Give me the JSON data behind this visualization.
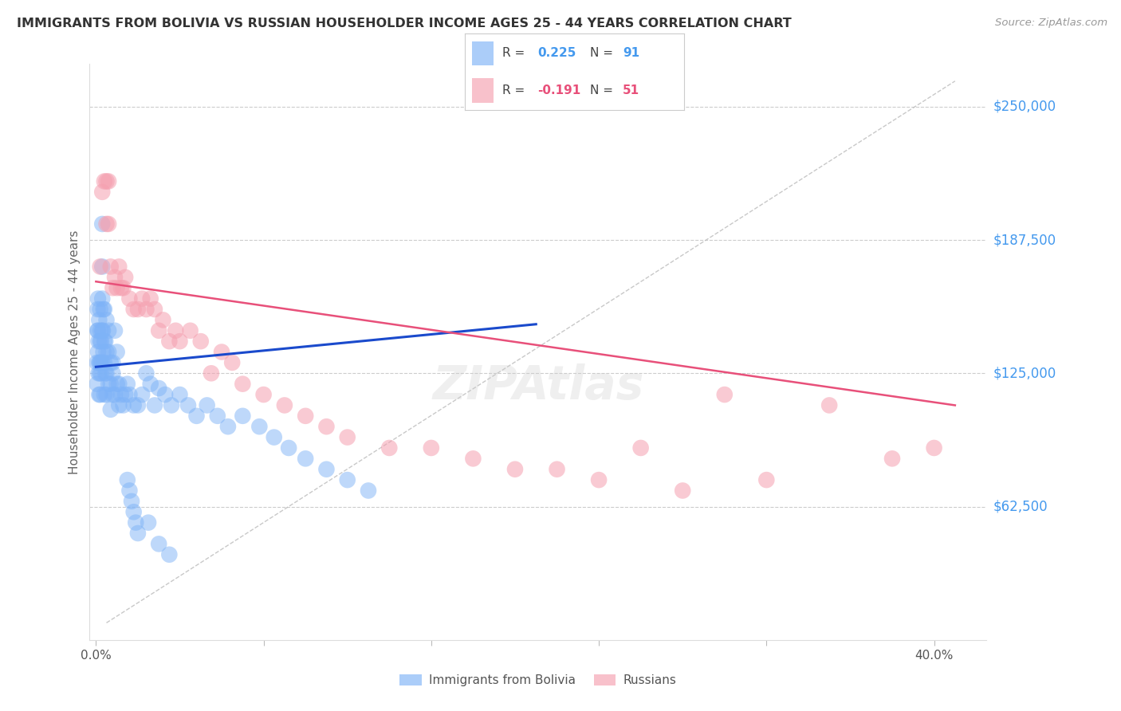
{
  "title": "IMMIGRANTS FROM BOLIVIA VS RUSSIAN HOUSEHOLDER INCOME AGES 25 - 44 YEARS CORRELATION CHART",
  "source": "Source: ZipAtlas.com",
  "ylabel": "Householder Income Ages 25 - 44 years",
  "ytick_labels": [
    "$62,500",
    "$125,000",
    "$187,500",
    "$250,000"
  ],
  "ytick_values": [
    62500,
    125000,
    187500,
    250000
  ],
  "ymin": 0,
  "ymax": 270000,
  "xmin": -0.003,
  "xmax": 0.425,
  "color_bolivia": "#7EB3F7",
  "color_russia": "#F5A0B0",
  "color_line_bolivia": "#1A4ACC",
  "color_line_russia": "#E8507A",
  "color_dashed": "#BBBBBB",
  "color_yticks": "#4499EE",
  "color_russia_val": "#E8507A",
  "background": "#FFFFFF",
  "bolivia_x": [
    0.0005,
    0.0005,
    0.0007,
    0.0008,
    0.001,
    0.001,
    0.001,
    0.0012,
    0.0012,
    0.0015,
    0.0015,
    0.0015,
    0.0018,
    0.002,
    0.002,
    0.002,
    0.002,
    0.0022,
    0.0022,
    0.0025,
    0.0025,
    0.003,
    0.003,
    0.003,
    0.003,
    0.003,
    0.0033,
    0.0035,
    0.0035,
    0.004,
    0.004,
    0.004,
    0.004,
    0.0045,
    0.0045,
    0.005,
    0.005,
    0.005,
    0.005,
    0.006,
    0.006,
    0.006,
    0.007,
    0.007,
    0.007,
    0.008,
    0.008,
    0.008,
    0.009,
    0.009,
    0.01,
    0.01,
    0.011,
    0.011,
    0.012,
    0.013,
    0.014,
    0.015,
    0.016,
    0.018,
    0.02,
    0.022,
    0.024,
    0.026,
    0.028,
    0.03,
    0.033,
    0.036,
    0.04,
    0.044,
    0.048,
    0.053,
    0.058,
    0.063,
    0.07,
    0.078,
    0.085,
    0.092,
    0.1,
    0.11,
    0.12,
    0.13,
    0.015,
    0.016,
    0.017,
    0.018,
    0.019,
    0.02,
    0.025,
    0.03,
    0.035
  ],
  "bolivia_y": [
    130000,
    120000,
    145000,
    155000,
    160000,
    145000,
    135000,
    140000,
    125000,
    150000,
    130000,
    115000,
    125000,
    155000,
    140000,
    130000,
    115000,
    145000,
    130000,
    140000,
    125000,
    195000,
    175000,
    160000,
    145000,
    130000,
    145000,
    155000,
    135000,
    155000,
    140000,
    130000,
    115000,
    140000,
    125000,
    150000,
    135000,
    125000,
    115000,
    145000,
    135000,
    120000,
    130000,
    120000,
    108000,
    130000,
    125000,
    115000,
    145000,
    115000,
    135000,
    120000,
    120000,
    110000,
    115000,
    110000,
    115000,
    120000,
    115000,
    110000,
    110000,
    115000,
    125000,
    120000,
    110000,
    118000,
    115000,
    110000,
    115000,
    110000,
    105000,
    110000,
    105000,
    100000,
    105000,
    100000,
    95000,
    90000,
    85000,
    80000,
    75000,
    70000,
    75000,
    70000,
    65000,
    60000,
    55000,
    50000,
    55000,
    45000,
    40000
  ],
  "russia_x": [
    0.002,
    0.003,
    0.004,
    0.005,
    0.005,
    0.006,
    0.006,
    0.007,
    0.008,
    0.009,
    0.01,
    0.011,
    0.012,
    0.013,
    0.014,
    0.016,
    0.018,
    0.02,
    0.022,
    0.024,
    0.026,
    0.028,
    0.03,
    0.032,
    0.035,
    0.038,
    0.04,
    0.045,
    0.05,
    0.055,
    0.06,
    0.065,
    0.07,
    0.08,
    0.09,
    0.1,
    0.11,
    0.12,
    0.14,
    0.16,
    0.18,
    0.2,
    0.22,
    0.24,
    0.26,
    0.28,
    0.3,
    0.32,
    0.35,
    0.38,
    0.4
  ],
  "russia_y": [
    175000,
    210000,
    215000,
    215000,
    195000,
    215000,
    195000,
    175000,
    165000,
    170000,
    165000,
    175000,
    165000,
    165000,
    170000,
    160000,
    155000,
    155000,
    160000,
    155000,
    160000,
    155000,
    145000,
    150000,
    140000,
    145000,
    140000,
    145000,
    140000,
    125000,
    135000,
    130000,
    120000,
    115000,
    110000,
    105000,
    100000,
    95000,
    90000,
    90000,
    85000,
    80000,
    80000,
    75000,
    90000,
    70000,
    115000,
    75000,
    110000,
    85000,
    90000
  ],
  "bolivia_line_x": [
    0.0,
    0.21
  ],
  "bolivia_line_y": [
    128000,
    148000
  ],
  "russia_line_x": [
    0.0,
    0.41
  ],
  "russia_line_y": [
    168000,
    110000
  ],
  "dash_line_x": [
    0.005,
    0.41
  ],
  "dash_line_y": [
    8000,
    262000
  ]
}
